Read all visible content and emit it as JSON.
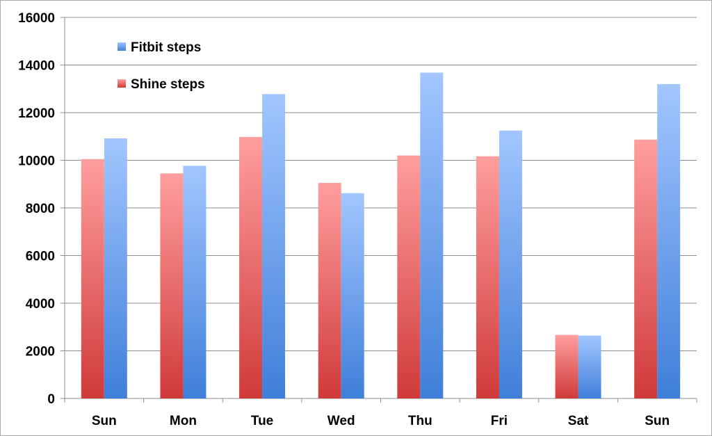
{
  "chart_data": {
    "type": "bar",
    "title": "",
    "xlabel": "",
    "ylabel": "",
    "categories": [
      "Sun",
      "Mon",
      "Tue",
      "Wed",
      "Thu",
      "Fri",
      "Sat",
      "Sun"
    ],
    "ylim": [
      0,
      16000
    ],
    "yticks": [
      "0",
      "2000",
      "4000",
      "6000",
      "8000",
      "10000",
      "12000",
      "14000",
      "16000"
    ],
    "grid": true,
    "legend_position": "top-left",
    "series": [
      {
        "name": "Shine steps",
        "color": "#e05252",
        "values": [
          10050,
          9450,
          10980,
          9050,
          10200,
          10170,
          2670,
          10870
        ]
      },
      {
        "name": "Fitbit steps",
        "color": "#5b93e6",
        "values": [
          10920,
          9770,
          12780,
          8620,
          13680,
          11250,
          2640,
          13200
        ]
      }
    ],
    "legend_order": [
      1,
      0
    ]
  }
}
